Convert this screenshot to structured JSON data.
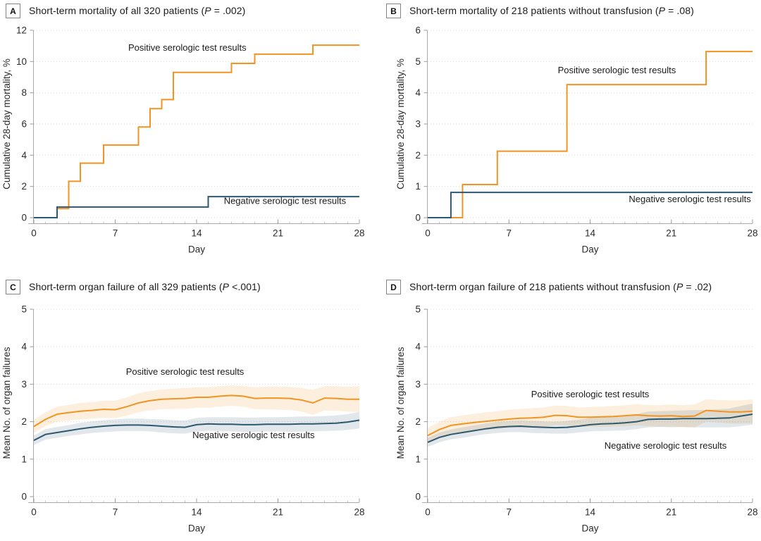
{
  "colors": {
    "positive": "#F29422",
    "negative": "#2E586E",
    "positive_band": "rgba(242,148,34,0.15)",
    "negative_band": "rgba(46,88,110,0.14)",
    "grid": "#d7d7d7",
    "axis": "#ababab",
    "text": "#1a1a1a"
  },
  "chart_data": [
    {
      "type": "step",
      "label": "A",
      "title_prefix": "Short-term mortality of all 320 patients (",
      "title_p": "P",
      "title_suffix": " = .002)",
      "xlabel": "Day",
      "ylabel": "Cumulative 28-day mortality, %",
      "xlim": [
        0,
        28
      ],
      "xticks": [
        0,
        7,
        14,
        21,
        28
      ],
      "ylim": [
        0,
        12
      ],
      "yticks": [
        0,
        2,
        4,
        6,
        8,
        10,
        12
      ],
      "series": [
        {
          "key": "positive",
          "name": "Positive serologic test results",
          "color": "positive",
          "steps": [
            [
              0,
              0
            ],
            [
              2,
              0.58
            ],
            [
              3,
              2.33
            ],
            [
              4,
              3.49
            ],
            [
              6,
              4.65
            ],
            [
              9,
              5.81
            ],
            [
              10,
              6.98
            ],
            [
              11,
              7.56
            ],
            [
              12,
              9.3
            ],
            [
              17,
              9.88
            ],
            [
              19,
              10.47
            ],
            [
              24,
              11.05
            ],
            [
              28,
              11.05
            ]
          ]
        },
        {
          "key": "negative",
          "name": "Negative serologic test results",
          "color": "negative",
          "steps": [
            [
              0,
              0
            ],
            [
              2,
              0.68
            ],
            [
              15,
              1.35
            ],
            [
              28,
              1.35
            ]
          ]
        }
      ],
      "annotations": [
        {
          "text": "Positive serologic test results",
          "x": 13.2,
          "y": 10.7
        },
        {
          "text": "Negative serologic test results",
          "x": 21.6,
          "y": 0.88
        }
      ]
    },
    {
      "type": "step",
      "label": "B",
      "title_prefix": "Short-term mortality of 218 patients without transfusion (",
      "title_p": "P",
      "title_suffix": " = .08)",
      "xlabel": "Day",
      "ylabel": "Cumulative 28-day mortality, %",
      "xlim": [
        0,
        28
      ],
      "xticks": [
        0,
        7,
        14,
        21,
        28
      ],
      "ylim": [
        0,
        6
      ],
      "yticks": [
        0,
        1,
        2,
        3,
        4,
        5,
        6
      ],
      "series": [
        {
          "key": "positive",
          "name": "Positive serologic test results",
          "color": "positive",
          "steps": [
            [
              0,
              0
            ],
            [
              3,
              1.06
            ],
            [
              6,
              2.13
            ],
            [
              12,
              4.26
            ],
            [
              24,
              5.32
            ],
            [
              28,
              5.32
            ]
          ]
        },
        {
          "key": "negative",
          "name": "Negative serologic test results",
          "color": "negative",
          "steps": [
            [
              0,
              0
            ],
            [
              2,
              0.81
            ],
            [
              28,
              0.81
            ]
          ]
        }
      ],
      "annotations": [
        {
          "text": "Positive serologic test results",
          "x": 16.3,
          "y": 4.62
        },
        {
          "text": "Negative serologic test results",
          "x": 22.6,
          "y": 0.5
        }
      ]
    },
    {
      "type": "line-band",
      "label": "C",
      "title_prefix": "Short-term organ failure of all 329 patients (",
      "title_p": "P",
      "title_suffix": " <.001)",
      "xlabel": "Day",
      "ylabel": "Mean No. of organ failures",
      "xlim": [
        0,
        28
      ],
      "xticks": [
        0,
        7,
        14,
        21,
        28
      ],
      "ylim": [
        0,
        5
      ],
      "yticks": [
        0,
        1,
        2,
        3,
        4,
        5
      ],
      "days": [
        0,
        1,
        2,
        3,
        4,
        5,
        6,
        7,
        8,
        9,
        10,
        11,
        12,
        13,
        14,
        15,
        16,
        17,
        18,
        19,
        20,
        21,
        22,
        23,
        24,
        25,
        26,
        27,
        28
      ],
      "series": [
        {
          "key": "positive",
          "name": "Positive serologic test results",
          "color": "positive",
          "mean": [
            1.87,
            2.06,
            2.2,
            2.24,
            2.28,
            2.3,
            2.33,
            2.32,
            2.4,
            2.5,
            2.56,
            2.6,
            2.61,
            2.62,
            2.65,
            2.65,
            2.68,
            2.7,
            2.68,
            2.62,
            2.63,
            2.63,
            2.62,
            2.58,
            2.5,
            2.63,
            2.62,
            2.6,
            2.6
          ],
          "upper": [
            2.05,
            2.25,
            2.4,
            2.45,
            2.5,
            2.52,
            2.56,
            2.56,
            2.65,
            2.76,
            2.82,
            2.86,
            2.88,
            2.9,
            2.92,
            2.92,
            2.95,
            2.97,
            2.96,
            2.92,
            2.93,
            2.94,
            2.93,
            2.9,
            2.85,
            2.95,
            2.95,
            2.93,
            2.95
          ],
          "lower": [
            1.7,
            1.88,
            2.0,
            2.03,
            2.06,
            2.08,
            2.1,
            2.09,
            2.16,
            2.25,
            2.3,
            2.33,
            2.34,
            2.34,
            2.37,
            2.37,
            2.4,
            2.42,
            2.4,
            2.33,
            2.33,
            2.32,
            2.31,
            2.27,
            2.18,
            2.3,
            2.29,
            2.27,
            2.25
          ]
        },
        {
          "key": "negative",
          "name": "Negative serologic test results",
          "color": "negative",
          "mean": [
            1.5,
            1.66,
            1.71,
            1.76,
            1.81,
            1.85,
            1.88,
            1.9,
            1.91,
            1.91,
            1.9,
            1.88,
            1.86,
            1.85,
            1.92,
            1.94,
            1.93,
            1.93,
            1.92,
            1.92,
            1.93,
            1.93,
            1.93,
            1.94,
            1.94,
            1.95,
            1.96,
            1.99,
            2.04
          ],
          "upper": [
            1.63,
            1.8,
            1.86,
            1.91,
            1.97,
            2.01,
            2.04,
            2.06,
            2.08,
            2.08,
            2.07,
            2.06,
            2.04,
            2.03,
            2.1,
            2.12,
            2.12,
            2.12,
            2.11,
            2.11,
            2.12,
            2.12,
            2.13,
            2.14,
            2.14,
            2.15,
            2.17,
            2.2,
            2.26
          ],
          "lower": [
            1.38,
            1.52,
            1.57,
            1.62,
            1.66,
            1.7,
            1.72,
            1.74,
            1.75,
            1.75,
            1.74,
            1.71,
            1.69,
            1.68,
            1.74,
            1.76,
            1.75,
            1.74,
            1.73,
            1.73,
            1.74,
            1.74,
            1.73,
            1.74,
            1.74,
            1.75,
            1.76,
            1.78,
            1.82
          ]
        }
      ],
      "annotations": [
        {
          "text": "Positive serologic test results",
          "x": 13.0,
          "y": 3.25
        },
        {
          "text": "Negative serologic test results",
          "x": 18.9,
          "y": 1.56
        }
      ]
    },
    {
      "type": "line-band",
      "label": "D",
      "title_prefix": "Short-term organ failure of 218 patients without transfusion (",
      "title_p": "P",
      "title_suffix": " = .02)",
      "xlabel": "Day",
      "ylabel": "Mean No. of organ failures",
      "xlim": [
        0,
        28
      ],
      "xticks": [
        0,
        7,
        14,
        21,
        28
      ],
      "ylim": [
        0,
        5
      ],
      "yticks": [
        0,
        1,
        2,
        3,
        4,
        5
      ],
      "days": [
        0,
        1,
        2,
        3,
        4,
        5,
        6,
        7,
        8,
        9,
        10,
        11,
        12,
        13,
        14,
        15,
        16,
        17,
        18,
        19,
        20,
        21,
        22,
        23,
        24,
        25,
        26,
        27,
        28
      ],
      "series": [
        {
          "key": "positive",
          "name": "Positive serologic test results",
          "color": "positive",
          "mean": [
            1.63,
            1.79,
            1.9,
            1.94,
            1.98,
            2.01,
            2.04,
            2.07,
            2.09,
            2.1,
            2.12,
            2.17,
            2.16,
            2.12,
            2.12,
            2.13,
            2.14,
            2.16,
            2.18,
            2.16,
            2.15,
            2.16,
            2.14,
            2.15,
            2.3,
            2.28,
            2.26,
            2.26,
            2.28
          ],
          "upper": [
            1.83,
            2.0,
            2.12,
            2.17,
            2.21,
            2.25,
            2.28,
            2.32,
            2.34,
            2.36,
            2.38,
            2.43,
            2.42,
            2.38,
            2.39,
            2.4,
            2.42,
            2.44,
            2.47,
            2.45,
            2.44,
            2.46,
            2.44,
            2.46,
            2.6,
            2.58,
            2.57,
            2.57,
            2.6
          ],
          "lower": [
            1.44,
            1.59,
            1.69,
            1.72,
            1.75,
            1.78,
            1.8,
            1.83,
            1.84,
            1.85,
            1.86,
            1.91,
            1.9,
            1.86,
            1.86,
            1.86,
            1.87,
            1.88,
            1.9,
            1.88,
            1.86,
            1.87,
            1.85,
            1.85,
            2.0,
            1.98,
            1.95,
            1.95,
            1.96
          ]
        },
        {
          "key": "negative",
          "name": "Negative serologic test results",
          "color": "negative",
          "mean": [
            1.45,
            1.58,
            1.66,
            1.71,
            1.76,
            1.81,
            1.85,
            1.87,
            1.88,
            1.86,
            1.85,
            1.84,
            1.85,
            1.88,
            1.92,
            1.94,
            1.95,
            1.97,
            2.0,
            2.06,
            2.07,
            2.07,
            2.08,
            2.08,
            2.08,
            2.09,
            2.1,
            2.15,
            2.2
          ],
          "upper": [
            1.57,
            1.71,
            1.79,
            1.85,
            1.9,
            1.95,
            2.0,
            2.02,
            2.04,
            2.02,
            2.01,
            2.0,
            2.02,
            2.05,
            2.1,
            2.13,
            2.14,
            2.17,
            2.2,
            2.27,
            2.28,
            2.29,
            2.3,
            2.31,
            2.31,
            2.33,
            2.35,
            2.42,
            2.48
          ],
          "lower": [
            1.33,
            1.45,
            1.53,
            1.57,
            1.62,
            1.67,
            1.7,
            1.72,
            1.72,
            1.7,
            1.69,
            1.68,
            1.68,
            1.71,
            1.74,
            1.75,
            1.76,
            1.77,
            1.8,
            1.85,
            1.86,
            1.85,
            1.86,
            1.85,
            1.85,
            1.85,
            1.85,
            1.88,
            1.92
          ]
        }
      ],
      "annotations": [
        {
          "text": "Positive serologic test results",
          "x": 14.0,
          "y": 2.65
        },
        {
          "text": "Negative serologic test results",
          "x": 20.5,
          "y": 1.28
        }
      ]
    }
  ]
}
